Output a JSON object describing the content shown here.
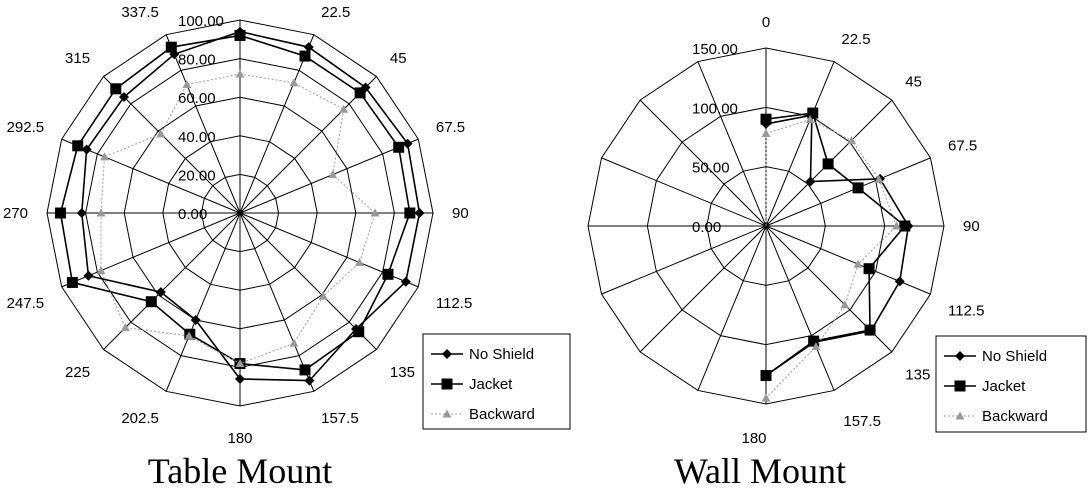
{
  "chart_data": [
    {
      "type": "radar",
      "caption": "Table Mount",
      "angles": [
        "0",
        "22.5",
        "45",
        "67.5",
        "90",
        "112.5",
        "135",
        "157.5",
        "180",
        "202.5",
        "225",
        "247.5",
        "270",
        "292.5",
        "315",
        "337.5"
      ],
      "radial_ticks": [
        "0.00",
        "20.00",
        "40.00",
        "60.00",
        "80.00",
        "100.00"
      ],
      "rlim": [
        0,
        100
      ],
      "grid": true,
      "legend_position": "bottom-right",
      "series": [
        {
          "name": "No Shield",
          "marker": "diamond",
          "color": "#000000",
          "values": [
            94,
            93,
            92,
            94,
            93,
            93,
            85,
            94,
            86,
            60,
            58,
            85,
            82,
            86,
            85,
            89
          ]
        },
        {
          "name": "Jacket",
          "marker": "square",
          "color": "#000000",
          "values": [
            92,
            88,
            88,
            89,
            88,
            83,
            87,
            88,
            78,
            68,
            65,
            94,
            93,
            91,
            91,
            93
          ]
        },
        {
          "name": "Backward",
          "marker": "triangle",
          "color": "#999999",
          "values": [
            72,
            73,
            76,
            52,
            70,
            67,
            61,
            73,
            78,
            69,
            84,
            78,
            72,
            76,
            58,
            72
          ]
        }
      ]
    },
    {
      "type": "radar",
      "caption": "Wall Mount",
      "angles": [
        "0",
        "22.5",
        "45",
        "67.5",
        "90",
        "112.5",
        "135",
        "157.5",
        "180"
      ],
      "radial_ticks": [
        "0.00",
        "50.00",
        "100.00",
        "150.00"
      ],
      "rlim": [
        0,
        150
      ],
      "grid": true,
      "legend_position": "bottom-right",
      "series": [
        {
          "name": "No Shield",
          "marker": "diamond",
          "color": "#000000",
          "values": [
            86,
            101,
            53,
            104,
            120,
            122,
            125,
            106,
            126
          ]
        },
        {
          "name": "Jacket",
          "marker": "square",
          "color": "#000000",
          "values": [
            90,
            103,
            74,
            84,
            117,
            94,
            124,
            105,
            126
          ]
        },
        {
          "name": "Backward",
          "marker": "triangle",
          "color": "#999999",
          "values": [
            78,
            97,
            102,
            103,
            110,
            84,
            94,
            110,
            145
          ]
        }
      ]
    }
  ]
}
